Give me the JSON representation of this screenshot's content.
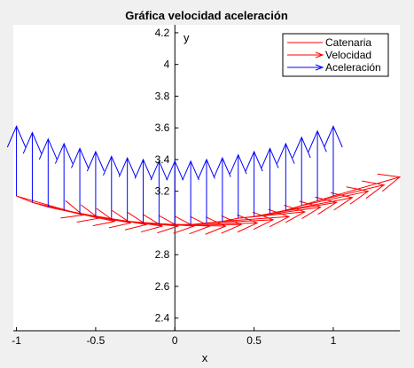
{
  "chart_data": {
    "type": "line",
    "title": "Gráfica velocidad aceleración",
    "xlabel": "x",
    "ylabel": "y",
    "xlim": [
      -1.02,
      1.42
    ],
    "ylim": [
      2.32,
      4.25
    ],
    "xticks": [
      -1,
      -0.5,
      0,
      0.5,
      1
    ],
    "xtick_labels": [
      "-1",
      "-0.5",
      "0",
      "0.5",
      "1"
    ],
    "yticks": [
      2.4,
      2.6,
      2.8,
      3.2,
      3.4,
      3.6,
      3.8,
      4,
      4.2
    ],
    "ytick_labels": [
      "2.4",
      "2.6",
      "2.8",
      "3.2",
      "3.4",
      "3.6",
      "3.8",
      "4",
      "4.2"
    ],
    "grid": false,
    "axes_through_origin": true,
    "legend_position": "top-right",
    "colors": {
      "catenaria": "#ff0000",
      "velocidad": "#ff0000",
      "aceleracion": "#0000ff",
      "axes": "#000000"
    },
    "series": [
      {
        "name": "Catenaria",
        "kind": "line",
        "x": [
          -1,
          -0.9,
          -0.8,
          -0.7,
          -0.6,
          -0.5,
          -0.4,
          -0.3,
          -0.2,
          -0.1,
          0,
          0.1,
          0.2,
          0.3,
          0.4,
          0.5,
          0.6,
          0.7,
          0.8,
          0.9,
          1
        ],
        "y": [
          3.17,
          3.13,
          3.1,
          3.08,
          3.06,
          3.04,
          3.02,
          3.01,
          3.0,
          2.99,
          2.99,
          2.99,
          3.0,
          3.01,
          3.03,
          3.04,
          3.06,
          3.08,
          3.11,
          3.14,
          3.17
        ]
      },
      {
        "name": "Velocidad",
        "kind": "arrows",
        "x": [
          -1,
          -0.9,
          -0.8,
          -0.7,
          -0.6,
          -0.5,
          -0.4,
          -0.3,
          -0.2,
          -0.1,
          0,
          0.1,
          0.2,
          0.3,
          0.4,
          0.5,
          0.6,
          0.7,
          0.8,
          0.9,
          1
        ],
        "y": [
          3.17,
          3.13,
          3.1,
          3.08,
          3.06,
          3.04,
          3.02,
          3.01,
          3.0,
          2.99,
          2.99,
          2.99,
          3.0,
          3.01,
          3.03,
          3.04,
          3.06,
          3.08,
          3.11,
          3.14,
          3.17
        ],
        "u": [
          0.42,
          0.42,
          0.42,
          0.42,
          0.42,
          0.42,
          0.42,
          0.42,
          0.42,
          0.42,
          0.42,
          0.42,
          0.42,
          0.42,
          0.42,
          0.42,
          0.42,
          0.42,
          0.42,
          0.42,
          0.42
        ],
        "v": [
          -0.12,
          -0.1,
          -0.09,
          -0.08,
          -0.07,
          -0.06,
          -0.04,
          -0.03,
          -0.02,
          -0.01,
          0.0,
          0.01,
          0.02,
          0.03,
          0.04,
          0.06,
          0.07,
          0.08,
          0.09,
          0.1,
          0.12
        ]
      },
      {
        "name": "Aceleración",
        "kind": "arrows",
        "x": [
          -1,
          -0.9,
          -0.8,
          -0.7,
          -0.6,
          -0.5,
          -0.4,
          -0.3,
          -0.2,
          -0.1,
          0,
          0.1,
          0.2,
          0.3,
          0.4,
          0.5,
          0.6,
          0.7,
          0.8,
          0.9,
          1
        ],
        "y": [
          3.17,
          3.13,
          3.1,
          3.08,
          3.06,
          3.04,
          3.02,
          3.01,
          3.0,
          2.99,
          2.99,
          2.99,
          3.0,
          3.01,
          3.03,
          3.04,
          3.06,
          3.08,
          3.11,
          3.14,
          3.17
        ],
        "u": [
          0,
          0,
          0,
          0,
          0,
          0,
          0,
          0,
          0,
          0,
          0,
          0,
          0,
          0,
          0,
          0,
          0,
          0,
          0,
          0,
          0
        ],
        "v": [
          0.44,
          0.44,
          0.43,
          0.42,
          0.41,
          0.41,
          0.4,
          0.4,
          0.4,
          0.4,
          0.4,
          0.4,
          0.4,
          0.4,
          0.4,
          0.41,
          0.41,
          0.42,
          0.43,
          0.44,
          0.44
        ]
      }
    ]
  }
}
